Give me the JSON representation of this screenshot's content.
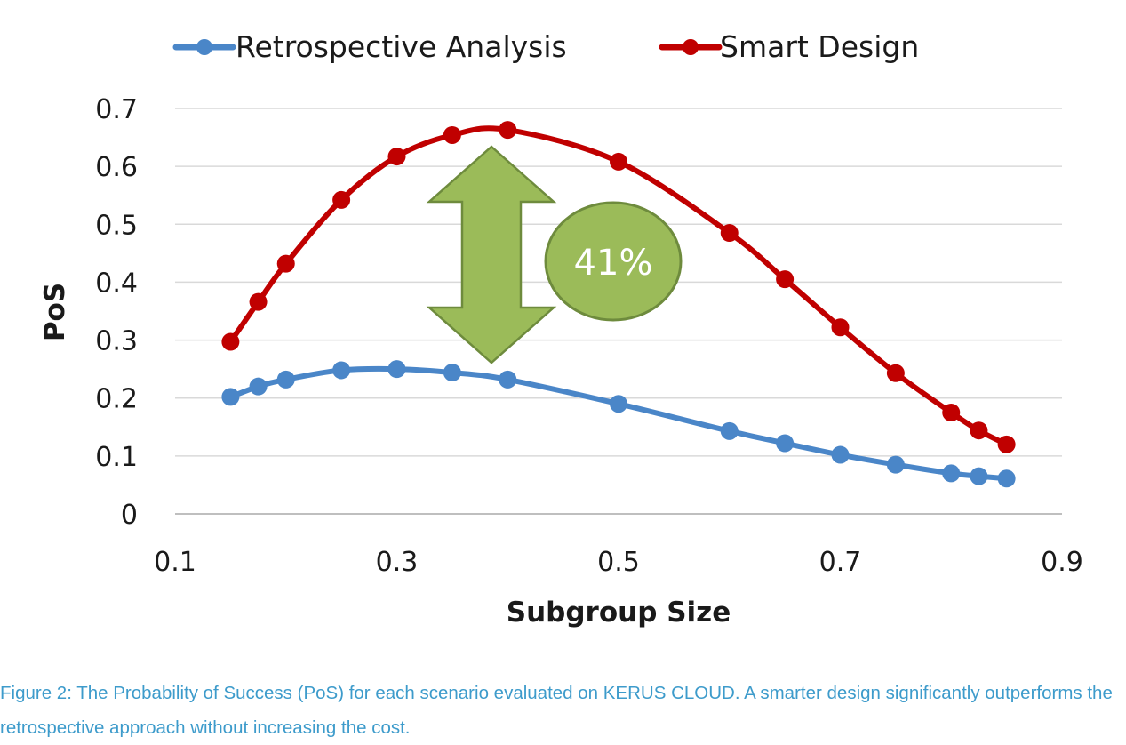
{
  "caption": "Figure 2: The Probability of Success (PoS) for each scenario evaluated on KERUS CLOUD. A smarter design significantly outperforms the retrospective approach without increasing the cost.",
  "annotation": {
    "label": "41%",
    "fill_color": "#9bbb59",
    "stroke_color": "#6e8b3d"
  },
  "chart_data": {
    "type": "line",
    "xlabel": "Subgroup  Size",
    "ylabel": "PoS",
    "xlim": [
      0.1,
      0.9
    ],
    "ylim": [
      0,
      0.7
    ],
    "xticks": [
      0.1,
      0.3,
      0.5,
      0.7,
      0.9
    ],
    "yticks": [
      0,
      0.1,
      0.2,
      0.3,
      0.4,
      0.5,
      0.6,
      0.7
    ],
    "grid": "horizontal",
    "legend_position": "top-center",
    "series": [
      {
        "name": "Retrospective Analysis",
        "color": "#4a86c8",
        "x": [
          0.15,
          0.175,
          0.2,
          0.25,
          0.3,
          0.35,
          0.4,
          0.5,
          0.6,
          0.65,
          0.7,
          0.75,
          0.8,
          0.825,
          0.85
        ],
        "y": [
          0.202,
          0.22,
          0.232,
          0.248,
          0.25,
          0.244,
          0.232,
          0.19,
          0.143,
          0.122,
          0.102,
          0.085,
          0.07,
          0.065,
          0.061
        ]
      },
      {
        "name": "Smart Design",
        "color": "#c00000",
        "x": [
          0.15,
          0.175,
          0.2,
          0.25,
          0.3,
          0.35,
          0.4,
          0.5,
          0.6,
          0.65,
          0.7,
          0.75,
          0.8,
          0.825,
          0.85
        ],
        "y": [
          0.297,
          0.366,
          0.432,
          0.542,
          0.617,
          0.654,
          0.663,
          0.608,
          0.485,
          0.405,
          0.322,
          0.243,
          0.175,
          0.144,
          0.12
        ]
      }
    ]
  }
}
